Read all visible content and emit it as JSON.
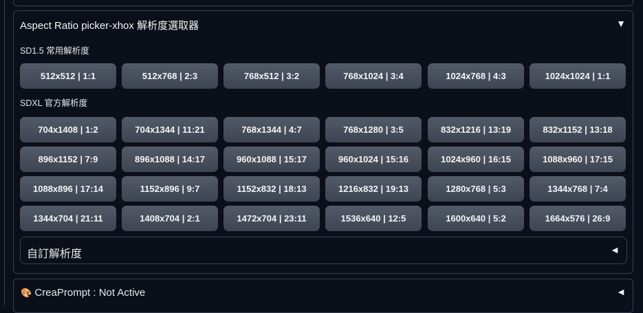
{
  "panel": {
    "title": "Aspect Ratio picker-xhox 解析度選取器",
    "collapse_icon": "▼"
  },
  "sd15": {
    "label": "SD1.5 常用解析度",
    "buttons": [
      "512x512 | 1:1",
      "512x768 | 2:3",
      "768x512 | 3:2",
      "768x1024 | 3:4",
      "1024x768 | 4:3",
      "1024x1024 | 1:1"
    ]
  },
  "sdxl": {
    "label": "SDXL 官方解析度",
    "buttons": [
      "704x1408 | 1:2",
      "704x1344 | 11:21",
      "768x1344 | 4:7",
      "768x1280 | 3:5",
      "832x1216 | 13:19",
      "832x1152 | 13:18",
      "896x1152 | 7:9",
      "896x1088 | 14:17",
      "960x1088 | 15:17",
      "960x1024 | 15:16",
      "1024x960 | 16:15",
      "1088x960 | 17:15",
      "1088x896 | 17:14",
      "1152x896 | 9:7",
      "1152x832 | 18:13",
      "1216x832 | 19:13",
      "1280x768 | 5:3",
      "1344x768 | 7:4",
      "1344x704 | 21:11",
      "1408x704 | 2:1",
      "1472x704 | 23:11",
      "1536x640 | 12:5",
      "1600x640 | 5:2",
      "1664x576 | 26:9"
    ]
  },
  "custom": {
    "label": "自訂解析度",
    "expand_icon": "◄"
  },
  "creaprompt": {
    "icon": "🎨",
    "label": "CreaPrompt : Not Active",
    "expand_icon": "◄"
  }
}
